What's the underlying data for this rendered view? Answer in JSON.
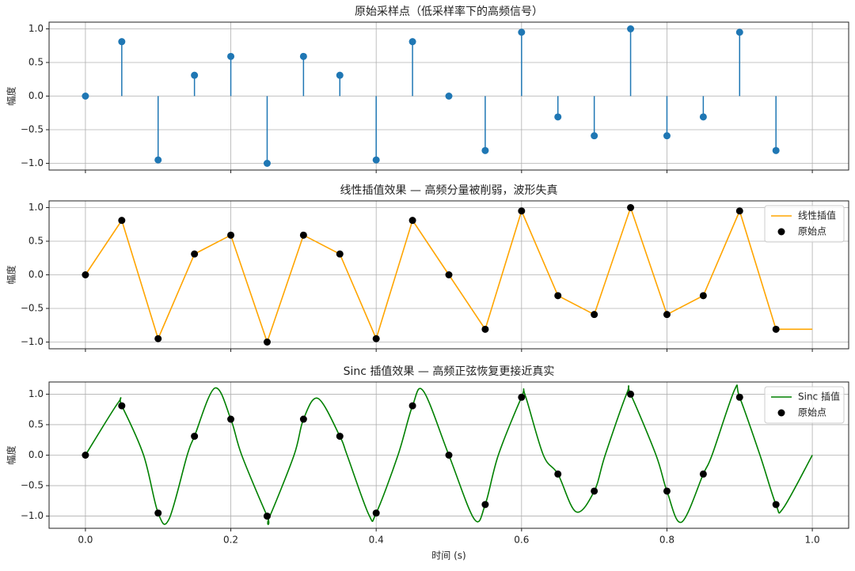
{
  "chart_data": [
    {
      "type": "stem",
      "title": "原始采样点（低采样率下的高频信号）",
      "ylabel": "幅度",
      "color": "#1f77b4",
      "grid": true,
      "x": [
        0,
        0.05,
        0.1,
        0.15,
        0.2,
        0.25,
        0.3,
        0.35,
        0.4,
        0.45,
        0.5,
        0.55,
        0.6,
        0.65,
        0.7,
        0.75,
        0.8,
        0.85,
        0.9,
        0.95
      ],
      "values": [
        0,
        0.81,
        -0.95,
        0.31,
        0.59,
        -1.0,
        0.59,
        0.31,
        -0.95,
        0.81,
        0,
        -0.81,
        0.95,
        -0.31,
        -0.59,
        1.0,
        -0.59,
        -0.31,
        0.95,
        -0.81
      ],
      "xlim": [
        -0.05,
        1.05
      ],
      "ylim": [
        -1.1,
        1.1
      ],
      "xticks": [
        0,
        0.2,
        0.4,
        0.6,
        0.8,
        1
      ],
      "yticks": [
        {
          "value": -1,
          "label": "−1.0"
        },
        {
          "value": -0.5,
          "label": "−0.5"
        },
        {
          "value": 0,
          "label": "0.0"
        },
        {
          "value": 0.5,
          "label": "0.5"
        },
        {
          "value": 1,
          "label": "1.0"
        }
      ]
    },
    {
      "type": "line",
      "title": "线性插值效果 — 高频分量被削弱，波形失真",
      "ylabel": "幅度",
      "grid": true,
      "legend": "upper right",
      "series": [
        {
          "name": "线性插值",
          "type": "line",
          "color": "orange",
          "x": [
            0,
            0.05,
            0.1,
            0.15,
            0.2,
            0.25,
            0.3,
            0.35,
            0.4,
            0.45,
            0.5,
            0.55,
            0.6,
            0.65,
            0.7,
            0.75,
            0.8,
            0.85,
            0.9,
            0.95,
            1.0
          ],
          "values": [
            0,
            0.81,
            -0.95,
            0.31,
            0.59,
            -1.0,
            0.59,
            0.31,
            -0.95,
            0.81,
            0,
            -0.81,
            0.95,
            -0.31,
            -0.59,
            1.0,
            -0.59,
            -0.31,
            0.95,
            -0.81,
            -0.81
          ]
        },
        {
          "name": "原始点",
          "type": "scatter",
          "color": "black",
          "x": [
            0,
            0.05,
            0.1,
            0.15,
            0.2,
            0.25,
            0.3,
            0.35,
            0.4,
            0.45,
            0.5,
            0.55,
            0.6,
            0.65,
            0.7,
            0.75,
            0.8,
            0.85,
            0.9,
            0.95
          ],
          "values": [
            0,
            0.81,
            -0.95,
            0.31,
            0.59,
            -1.0,
            0.59,
            0.31,
            -0.95,
            0.81,
            0,
            -0.81,
            0.95,
            -0.31,
            -0.59,
            1.0,
            -0.59,
            -0.31,
            0.95,
            -0.81
          ]
        }
      ],
      "xlim": [
        -0.05,
        1.05
      ],
      "ylim": [
        -1.1,
        1.1
      ],
      "xticks": [
        0,
        0.2,
        0.4,
        0.6,
        0.8,
        1
      ],
      "yticks": [
        {
          "value": -1,
          "label": "−1.0"
        },
        {
          "value": -0.5,
          "label": "−0.5"
        },
        {
          "value": 0,
          "label": "0.0"
        },
        {
          "value": 0.5,
          "label": "0.5"
        },
        {
          "value": 1,
          "label": "1.0"
        }
      ]
    },
    {
      "type": "line",
      "title": "Sinc 插值效果 — 高频正弦恢复更接近真实",
      "ylabel": "幅度",
      "xlabel": "时间 (s)",
      "grid": true,
      "legend": "upper right",
      "series": [
        {
          "name": "Sinc 插值",
          "type": "line",
          "color": "green",
          "x": [
            0,
            0.045,
            0.05,
            0.08,
            0.1,
            0.115,
            0.14,
            0.15,
            0.178,
            0.2,
            0.215,
            0.25,
            0.253,
            0.287,
            0.3,
            0.32,
            0.35,
            0.36,
            0.39,
            0.4,
            0.43,
            0.45,
            0.465,
            0.5,
            0.535,
            0.55,
            0.568,
            0.6,
            0.605,
            0.63,
            0.65,
            0.675,
            0.7,
            0.715,
            0.745,
            0.75,
            0.785,
            0.8,
            0.82,
            0.85,
            0.862,
            0.893,
            0.9,
            0.928,
            0.95,
            0.96,
            1.0
          ],
          "values": [
            0,
            0.86,
            0.81,
            0,
            -0.95,
            -1.05,
            0,
            0.31,
            1.1,
            0.59,
            0,
            -1.0,
            -1.02,
            0,
            0.59,
            0.93,
            0.31,
            0,
            -0.98,
            -0.95,
            0,
            0.81,
            1.05,
            0,
            -1.05,
            -0.81,
            0,
            0.95,
            0.98,
            0,
            -0.31,
            -0.93,
            -0.59,
            0,
            1.02,
            1.0,
            0,
            -0.59,
            -1.1,
            -0.31,
            0,
            1.07,
            0.95,
            0,
            -0.81,
            -0.87,
            0
          ]
        },
        {
          "name": "原始点",
          "type": "scatter",
          "color": "black",
          "x": [
            0,
            0.05,
            0.1,
            0.15,
            0.2,
            0.25,
            0.3,
            0.35,
            0.4,
            0.45,
            0.5,
            0.55,
            0.6,
            0.65,
            0.7,
            0.75,
            0.8,
            0.85,
            0.9,
            0.95
          ],
          "values": [
            0,
            0.81,
            -0.95,
            0.31,
            0.59,
            -1.0,
            0.59,
            0.31,
            -0.95,
            0.81,
            0,
            -0.81,
            0.95,
            -0.31,
            -0.59,
            1.0,
            -0.59,
            -0.31,
            0.95,
            -0.81
          ]
        }
      ],
      "xlim": [
        -0.05,
        1.05
      ],
      "ylim": [
        -1.2,
        1.2
      ],
      "xticks": [
        {
          "value": 0,
          "label": "0.0"
        },
        {
          "value": 0.2,
          "label": "0.2"
        },
        {
          "value": 0.4,
          "label": "0.4"
        },
        {
          "value": 0.6,
          "label": "0.6"
        },
        {
          "value": 0.8,
          "label": "0.8"
        },
        {
          "value": 1,
          "label": "1.0"
        }
      ],
      "yticks": [
        {
          "value": -1,
          "label": "−1.0"
        },
        {
          "value": -0.5,
          "label": "−0.5"
        },
        {
          "value": 0,
          "label": "0.0"
        },
        {
          "value": 0.5,
          "label": "0.5"
        },
        {
          "value": 1,
          "label": "1.0"
        }
      ]
    }
  ]
}
